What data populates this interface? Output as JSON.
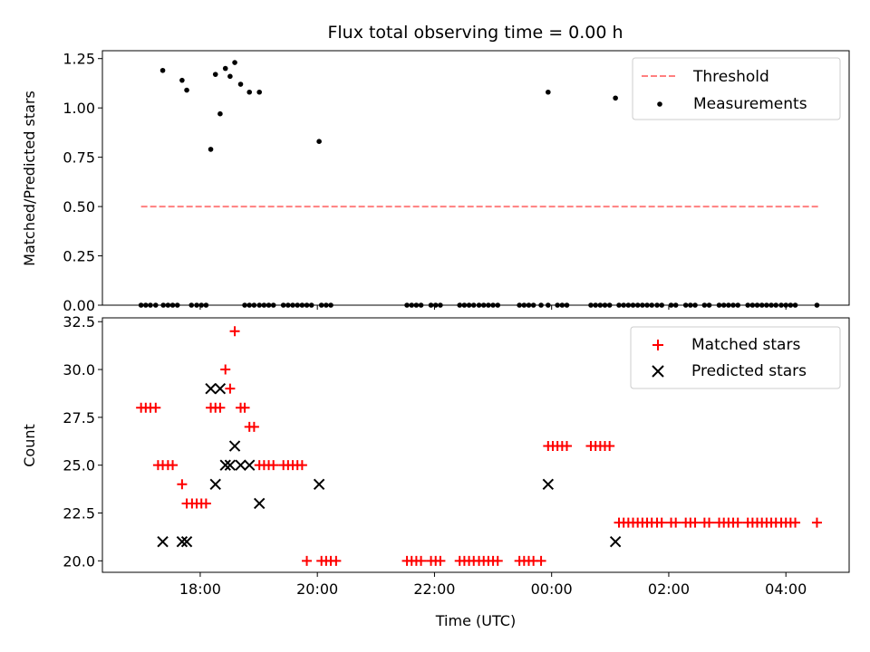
{
  "title": "Flux total observing time = 0.00 h",
  "colors": {
    "threshold": "#ff7f7f",
    "measurements": "#000000",
    "matched": "#ff0000",
    "predicted": "#000000"
  },
  "chart_data": [
    {
      "type": "scatter",
      "name": "ratio-panel",
      "ylabel": "Matched/Predicted stars",
      "xlim": [
        16.33,
        29.08
      ],
      "ylim": [
        0.0,
        1.29
      ],
      "yticks": [
        0.0,
        0.25,
        0.5,
        0.75,
        1.0,
        1.25
      ],
      "ytick_labels": [
        "0.00",
        "0.25",
        "0.50",
        "0.75",
        "1.00",
        "1.25"
      ],
      "legend": {
        "position": "top-right",
        "entries": [
          "Threshold",
          "Measurements"
        ]
      },
      "threshold": {
        "label": "Threshold",
        "value": 0.5,
        "x": [
          16.99,
          28.58
        ],
        "style": "dashed"
      },
      "measurements": {
        "label": "Measurements",
        "x": [
          17.36,
          17.69,
          17.77,
          18.18,
          18.26,
          18.34,
          18.43,
          18.51,
          18.59,
          18.69,
          18.84,
          19.01,
          20.03,
          23.94,
          25.09,
          16.99,
          17.07,
          17.15,
          17.24,
          17.37,
          17.45,
          17.53,
          17.61,
          17.85,
          17.94,
          18.02,
          18.1,
          18.76,
          18.84,
          18.92,
          19.01,
          19.09,
          19.17,
          19.25,
          19.42,
          19.5,
          19.58,
          19.66,
          19.74,
          19.82,
          19.9,
          20.07,
          20.15,
          20.23,
          21.53,
          21.61,
          21.69,
          21.77,
          21.94,
          22.02,
          22.1,
          22.43,
          22.51,
          22.59,
          22.67,
          22.76,
          22.84,
          22.92,
          23.0,
          23.08,
          23.45,
          23.53,
          23.61,
          23.69,
          23.82,
          23.94,
          24.1,
          24.18,
          24.26,
          24.67,
          24.75,
          24.83,
          24.91,
          24.99,
          25.15,
          25.23,
          25.31,
          25.39,
          25.47,
          25.55,
          25.63,
          25.71,
          25.8,
          25.88,
          26.04,
          26.12,
          26.29,
          26.37,
          26.45,
          26.61,
          26.69,
          26.86,
          26.94,
          27.02,
          27.1,
          27.18,
          27.35,
          27.43,
          27.51,
          27.59,
          27.67,
          27.75,
          27.83,
          27.92,
          28.0,
          28.08,
          28.16,
          28.53
        ],
        "y": [
          1.19,
          1.14,
          1.09,
          0.79,
          1.17,
          0.97,
          1.2,
          1.16,
          1.23,
          1.12,
          1.08,
          1.08,
          0.83,
          1.08,
          1.05,
          0,
          0,
          0,
          0,
          0,
          0,
          0,
          0,
          0,
          0,
          0,
          0,
          0,
          0,
          0,
          0,
          0,
          0,
          0,
          0,
          0,
          0,
          0,
          0,
          0,
          0,
          0,
          0,
          0,
          0,
          0,
          0,
          0,
          0,
          0,
          0,
          0,
          0,
          0,
          0,
          0,
          0,
          0,
          0,
          0,
          0,
          0,
          0,
          0,
          0,
          0,
          0,
          0,
          0,
          0,
          0,
          0,
          0,
          0,
          0,
          0,
          0,
          0,
          0,
          0,
          0,
          0,
          0,
          0,
          0,
          0,
          0,
          0,
          0,
          0,
          0,
          0,
          0,
          0,
          0,
          0,
          0,
          0,
          0,
          0,
          0,
          0,
          0,
          0,
          0,
          0,
          0,
          0
        ]
      }
    },
    {
      "type": "scatter",
      "name": "count-panel",
      "xlabel": "Time (UTC)",
      "ylabel": "Count",
      "xlim": [
        16.33,
        29.08
      ],
      "ylim": [
        19.4,
        32.7
      ],
      "xticks": [
        18,
        20,
        22,
        24,
        26,
        28
      ],
      "xtick_labels": [
        "18:00",
        "20:00",
        "22:00",
        "00:00",
        "02:00",
        "04:00"
      ],
      "yticks": [
        20.0,
        22.5,
        25.0,
        27.5,
        30.0,
        32.5
      ],
      "ytick_labels": [
        "20.0",
        "22.5",
        "25.0",
        "27.5",
        "30.0",
        "32.5"
      ],
      "legend": {
        "position": "top-right",
        "entries": [
          "Matched stars",
          "Predicted stars"
        ]
      },
      "matched": {
        "label": "Matched stars",
        "x": [
          16.99,
          17.07,
          17.15,
          17.24,
          17.28,
          17.36,
          17.45,
          17.53,
          17.69,
          17.77,
          17.86,
          17.94,
          18.02,
          18.1,
          18.18,
          18.26,
          18.34,
          18.43,
          18.51,
          18.59,
          18.69,
          18.76,
          18.84,
          18.92,
          19.01,
          19.09,
          19.17,
          19.25,
          19.42,
          19.5,
          19.58,
          19.66,
          19.74,
          19.82,
          20.07,
          20.15,
          20.23,
          20.32,
          21.53,
          21.61,
          21.69,
          21.77,
          21.94,
          22.02,
          22.1,
          22.43,
          22.51,
          22.59,
          22.67,
          22.76,
          22.84,
          22.92,
          23.0,
          23.08,
          23.45,
          23.53,
          23.61,
          23.69,
          23.82,
          23.94,
          24.02,
          24.1,
          24.18,
          24.26,
          24.67,
          24.75,
          24.83,
          24.91,
          24.99,
          25.15,
          25.23,
          25.31,
          25.39,
          25.47,
          25.55,
          25.63,
          25.71,
          25.8,
          25.88,
          26.04,
          26.12,
          26.29,
          26.37,
          26.45,
          26.61,
          26.69,
          26.86,
          26.94,
          27.02,
          27.1,
          27.18,
          27.35,
          27.43,
          27.51,
          27.59,
          27.67,
          27.75,
          27.83,
          27.92,
          28.0,
          28.08,
          28.16,
          28.53
        ],
        "y": [
          28,
          28,
          28,
          28,
          25,
          25,
          25,
          25,
          24,
          23,
          23,
          23,
          23,
          23,
          28,
          28,
          28,
          30,
          29,
          32,
          28,
          28,
          27,
          27,
          25,
          25,
          25,
          25,
          25,
          25,
          25,
          25,
          25,
          20,
          20,
          20,
          20,
          20,
          20,
          20,
          20,
          20,
          20,
          20,
          20,
          20,
          20,
          20,
          20,
          20,
          20,
          20,
          20,
          20,
          20,
          20,
          20,
          20,
          20,
          26,
          26,
          26,
          26,
          26,
          26,
          26,
          26,
          26,
          26,
          22,
          22,
          22,
          22,
          22,
          22,
          22,
          22,
          22,
          22,
          22,
          22,
          22,
          22,
          22,
          22,
          22,
          22,
          22,
          22,
          22,
          22,
          22,
          22,
          22,
          22,
          22,
          22,
          22,
          22,
          22,
          22,
          22,
          22
        ]
      },
      "predicted": {
        "label": "Predicted stars",
        "x": [
          17.36,
          17.69,
          17.77,
          18.18,
          18.26,
          18.34,
          18.43,
          18.51,
          18.59,
          18.69,
          18.84,
          19.01,
          20.03,
          23.94,
          25.09
        ],
        "y": [
          21,
          21,
          21,
          29,
          24,
          29,
          25,
          25,
          26,
          25,
          25,
          23,
          24,
          24,
          21
        ]
      }
    }
  ]
}
